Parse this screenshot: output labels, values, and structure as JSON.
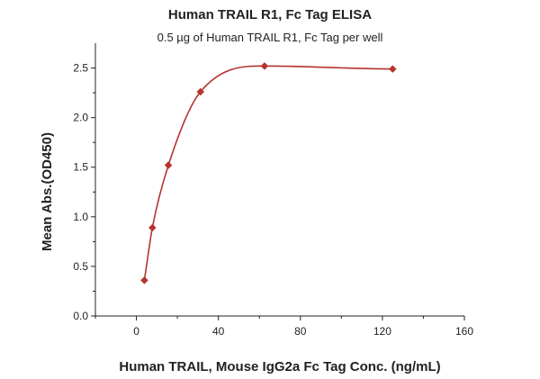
{
  "chart_data": {
    "type": "scatter",
    "title": "Human TRAIL R1, Fc Tag ELISA",
    "subtitle": "0.5 µg of Human TRAIL R1, Fc Tag per well",
    "xlabel": "Human TRAIL, Mouse IgG2a Fc Tag Conc. (ng/mL)",
    "ylabel": "Mean Abs.(OD450)",
    "xlim": [
      -20,
      160
    ],
    "ylim": [
      0,
      2.75
    ],
    "xticks": [
      0,
      40,
      80,
      120,
      160
    ],
    "yticks": [
      0.0,
      0.5,
      1.0,
      1.5,
      2.0,
      2.5
    ],
    "ytick_labels": [
      "0.0",
      "0.5",
      "1.0",
      "1.5",
      "2.0",
      "2.5"
    ],
    "grid": false,
    "colors": {
      "series": "#b5342e",
      "axis": "#222222"
    },
    "series": [
      {
        "marker": "diamond",
        "x": [
          3.9,
          7.8,
          15.6,
          31.25,
          62.5,
          125
        ],
        "y": [
          0.36,
          0.89,
          1.52,
          2.26,
          2.52,
          2.49
        ],
        "fit_curve": true
      }
    ]
  }
}
